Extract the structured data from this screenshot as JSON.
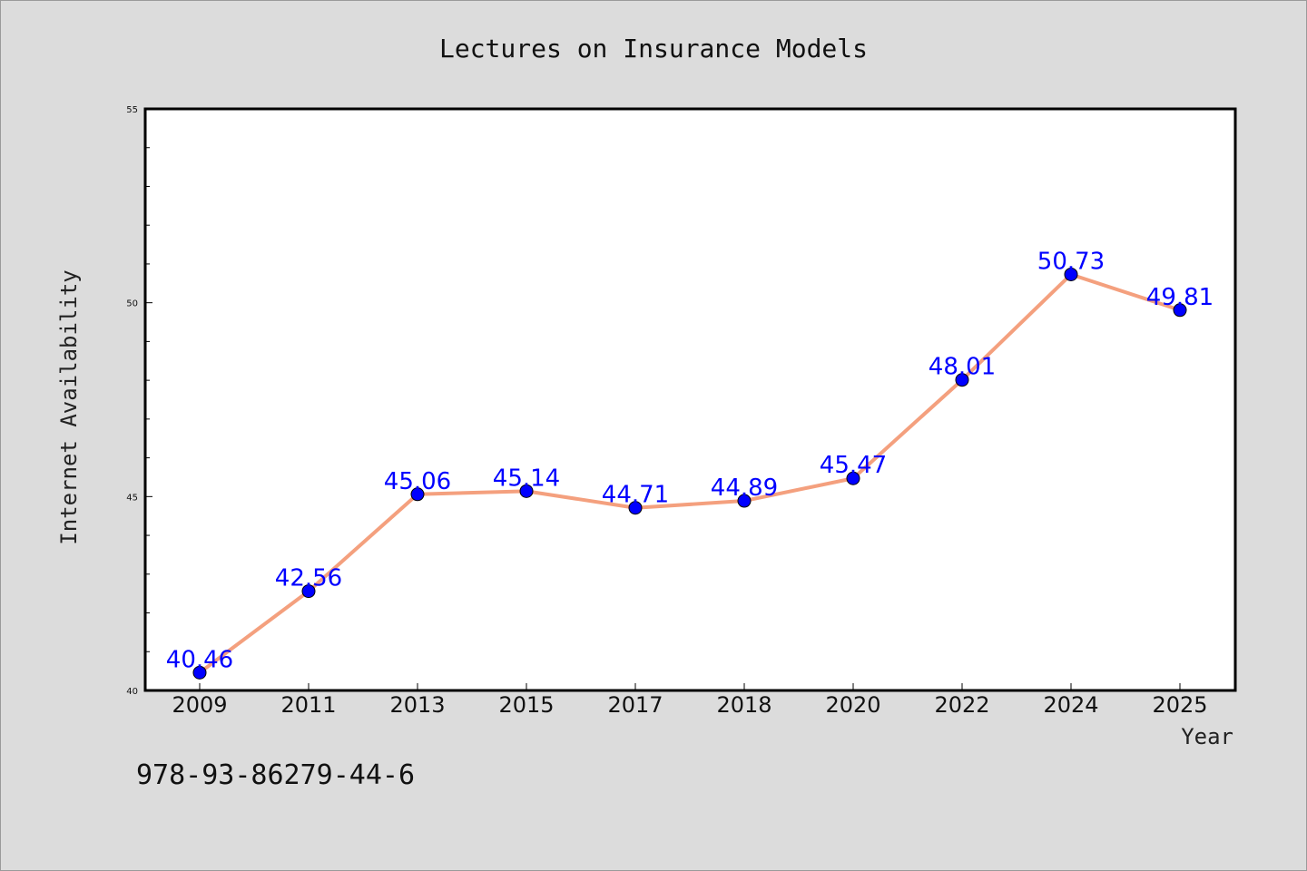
{
  "page": {
    "background": "#dcdcdc",
    "footer_text": "978-93-86279-44-6"
  },
  "chart_data": {
    "type": "line",
    "title": "Lectures on Insurance Models",
    "xlabel": "Year",
    "ylabel": "Internet Availability",
    "categories": [
      "2009",
      "2011",
      "2013",
      "2015",
      "2017",
      "2018",
      "2020",
      "2022",
      "2024",
      "2025"
    ],
    "series": [
      {
        "values": [
          40.46,
          42.56,
          45.06,
          45.14,
          44.71,
          44.89,
          45.47,
          48.01,
          50.73,
          49.81
        ],
        "line_color": "#f4a07e",
        "marker_color": "#0000ff",
        "label_color": "#0000ff"
      }
    ],
    "ylim": [
      40,
      55
    ],
    "yticks": [
      "40",
      "45",
      "50",
      "55"
    ],
    "grid": false,
    "legend": "none",
    "plot_background": "#ffffff"
  }
}
